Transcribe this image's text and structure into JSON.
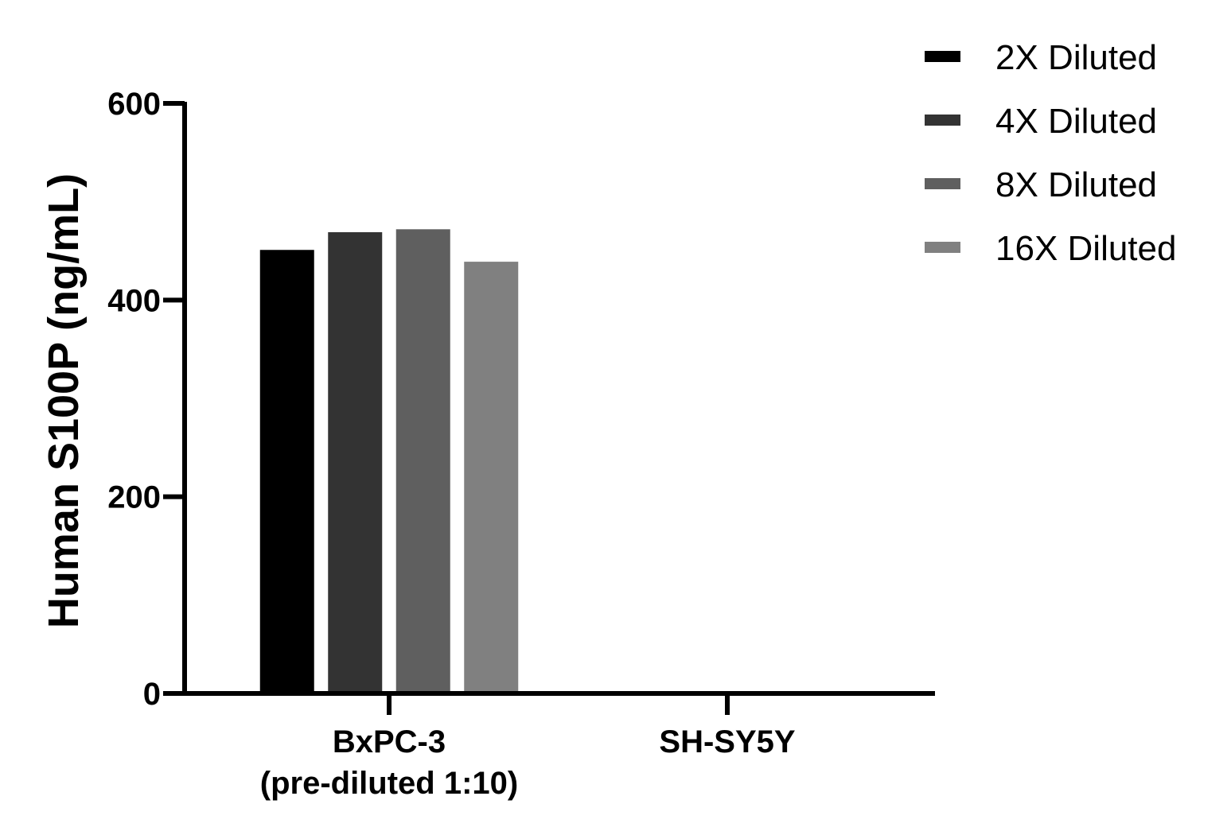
{
  "chart_data": {
    "type": "bar",
    "ylabel": "Human S100P (ng/mL)",
    "xlabel": "",
    "ylim": [
      0,
      600
    ],
    "yticks": [
      0,
      200,
      400,
      600
    ],
    "categories": [
      [
        "BxPC-3",
        "(pre-diluted 1:10)"
      ],
      [
        "SH-SY5Y"
      ]
    ],
    "series": [
      {
        "name": "2X Diluted",
        "color": "#000000",
        "values": [
          451,
          0
        ]
      },
      {
        "name": "4X Diluted",
        "color": "#333333",
        "values": [
          469,
          0
        ]
      },
      {
        "name": "8X Diluted",
        "color": "#5f5f5f",
        "values": [
          472,
          0
        ]
      },
      {
        "name": "16X Diluted",
        "color": "#808080",
        "values": [
          439,
          0
        ]
      }
    ],
    "legend_position": "top-right",
    "grid": false
  }
}
